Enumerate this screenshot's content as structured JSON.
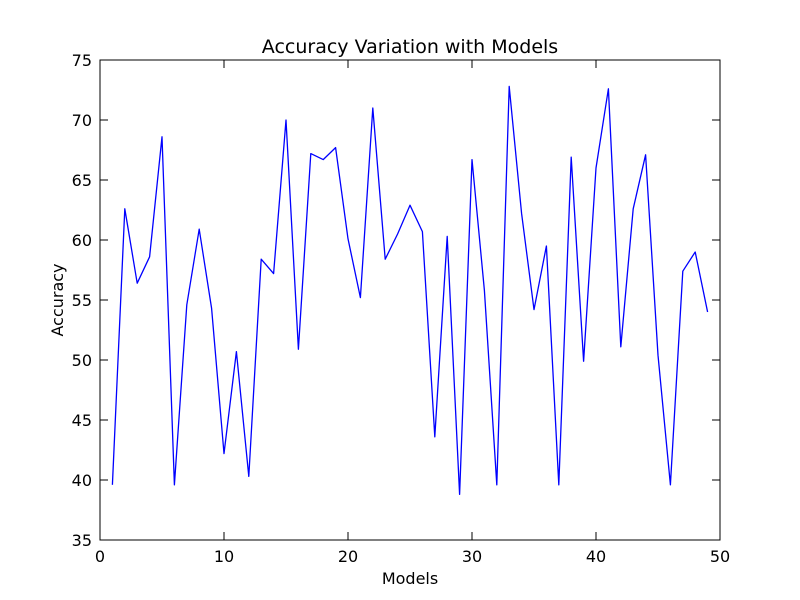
{
  "chart_data": {
    "type": "line",
    "title": "Accuracy Variation with Models",
    "xlabel": "Models",
    "ylabel": "Accuracy",
    "xlim": [
      0,
      50
    ],
    "ylim": [
      35,
      75
    ],
    "xticks": [
      0,
      10,
      20,
      30,
      40,
      50
    ],
    "yticks": [
      35,
      40,
      45,
      50,
      55,
      60,
      65,
      70,
      75
    ],
    "grid": false,
    "line_color": "#0000ff",
    "series": [
      {
        "x": [
          1,
          2,
          3,
          4,
          5,
          6,
          7,
          8,
          9,
          10,
          11,
          12,
          13,
          14,
          15,
          16,
          17,
          18,
          19,
          20,
          21,
          22,
          23,
          24,
          25,
          26,
          27,
          28,
          29,
          30,
          31,
          32,
          33,
          34,
          35,
          36,
          37,
          38,
          39,
          40,
          41,
          42,
          43,
          44,
          45,
          46,
          47,
          48,
          49
        ],
        "values": [
          39.6,
          62.6,
          56.4,
          58.6,
          68.6,
          39.6,
          54.6,
          60.9,
          54.3,
          42.2,
          50.7,
          40.3,
          58.4,
          57.2,
          70.0,
          50.9,
          67.2,
          66.7,
          67.7,
          60.1,
          55.2,
          71.0,
          58.4,
          60.5,
          62.9,
          60.7,
          43.6,
          60.3,
          38.8,
          66.7,
          55.8,
          39.6,
          72.8,
          62.2,
          54.2,
          59.5,
          39.6,
          66.9,
          49.9,
          66.0,
          72.6,
          51.1,
          62.6,
          67.1,
          50.4,
          39.6,
          57.4,
          59.0,
          54.0
        ]
      }
    ]
  }
}
